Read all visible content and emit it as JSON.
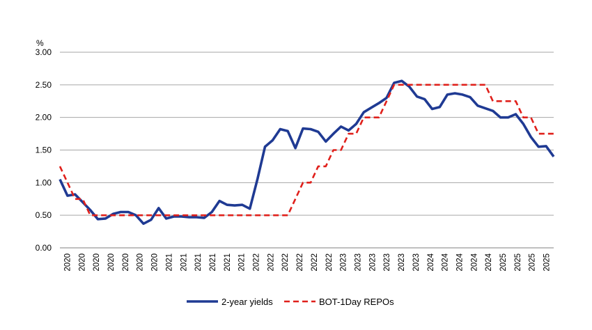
{
  "chart_data": {
    "type": "line",
    "title": "",
    "xlabel": "",
    "ylabel": "%",
    "ylim": [
      0,
      3
    ],
    "yticks": [
      "0.00",
      "0.50",
      "1.00",
      "1.50",
      "2.00",
      "2.50",
      "3.00"
    ],
    "grid": true,
    "legend": "bottom-center",
    "x_tick_labels": [
      "2020",
      "2020",
      "2020",
      "2020",
      "2020",
      "2020",
      "2020",
      "2021",
      "2021",
      "2021",
      "2021",
      "2021",
      "2021",
      "2022",
      "2022",
      "2022",
      "2022",
      "2022",
      "2022",
      "2023",
      "2023",
      "2023",
      "2023",
      "2023",
      "2023",
      "2024",
      "2024",
      "2024",
      "2024",
      "2024",
      "2025",
      "2025",
      "2025",
      "2025"
    ],
    "series": [
      {
        "name": "2-year yields",
        "color": "#1f3a93",
        "style": "solid",
        "values": [
          1.05,
          0.8,
          0.82,
          0.7,
          0.58,
          0.44,
          0.45,
          0.52,
          0.55,
          0.55,
          0.5,
          0.37,
          0.43,
          0.61,
          0.45,
          0.48,
          0.48,
          0.47,
          0.47,
          0.46,
          0.55,
          0.72,
          0.66,
          0.65,
          0.66,
          0.6,
          1.05,
          1.55,
          1.65,
          1.82,
          1.79,
          1.53,
          1.83,
          1.82,
          1.78,
          1.63,
          1.75,
          1.86,
          1.8,
          1.9,
          2.08,
          2.15,
          2.22,
          2.3,
          2.53,
          2.56,
          2.47,
          2.32,
          2.28,
          2.13,
          2.16,
          2.35,
          2.37,
          2.35,
          2.31,
          2.18,
          2.14,
          2.1,
          2.0,
          2.0,
          2.05,
          1.9,
          1.7,
          1.55,
          1.56,
          1.4
        ]
      },
      {
        "name": "BOT-1Day REPOs",
        "color": "#e0201b",
        "style": "dashed",
        "values": [
          1.25,
          1.0,
          0.75,
          0.75,
          0.5,
          0.5,
          0.5,
          0.5,
          0.5,
          0.5,
          0.5,
          0.5,
          0.5,
          0.5,
          0.5,
          0.5,
          0.5,
          0.5,
          0.5,
          0.5,
          0.5,
          0.5,
          0.5,
          0.5,
          0.5,
          0.5,
          0.5,
          0.5,
          0.5,
          0.5,
          0.5,
          0.75,
          1.0,
          1.0,
          1.25,
          1.25,
          1.5,
          1.5,
          1.75,
          1.75,
          2.0,
          2.0,
          2.0,
          2.25,
          2.5,
          2.5,
          2.5,
          2.5,
          2.5,
          2.5,
          2.5,
          2.5,
          2.5,
          2.5,
          2.5,
          2.5,
          2.5,
          2.25,
          2.25,
          2.25,
          2.25,
          2.0,
          2.0,
          1.75,
          1.75,
          1.75
        ]
      }
    ]
  }
}
